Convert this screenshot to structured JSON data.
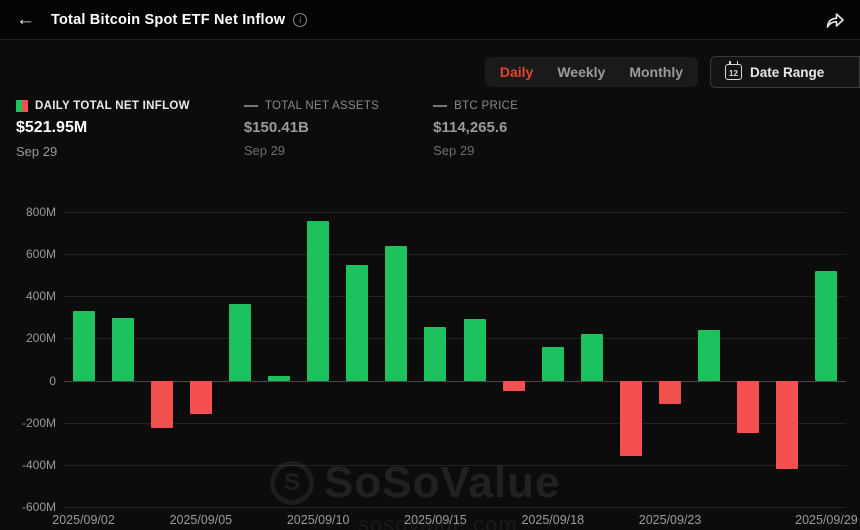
{
  "header": {
    "title": "Total Bitcoin Spot ETF Net Inflow"
  },
  "controls": {
    "tabs": [
      {
        "label": "Daily",
        "active": true
      },
      {
        "label": "Weekly",
        "active": false
      },
      {
        "label": "Monthly",
        "active": false
      }
    ],
    "date_range_label": "Date Range",
    "calendar_icon_text": "12"
  },
  "legend": {
    "items": [
      {
        "label": "DAILY TOTAL NET INFLOW",
        "value": "$521.95M",
        "date": "Sep 29"
      },
      {
        "label": "TOTAL NET ASSETS",
        "value": "$150.41B",
        "date": "Sep 29"
      },
      {
        "label": "BTC PRICE",
        "value": "$114,265.6",
        "date": "Sep 29"
      }
    ]
  },
  "watermark": {
    "logo_letter": "S",
    "title": "SoSoValue",
    "subtitle": "sosovalue.com"
  },
  "chart_data": {
    "type": "bar",
    "title": "Total Bitcoin Spot ETF Net Inflow (Daily, $M)",
    "categories": [
      "2025/09/02",
      "2025/09/03",
      "2025/09/04",
      "2025/09/05",
      "2025/09/08",
      "2025/09/09",
      "2025/09/10",
      "2025/09/11",
      "2025/09/12",
      "2025/09/15",
      "2025/09/16",
      "2025/09/17",
      "2025/09/18",
      "2025/09/19",
      "2025/09/22",
      "2025/09/23",
      "2025/09/24",
      "2025/09/25",
      "2025/09/26",
      "2025/09/29"
    ],
    "values": [
      330,
      295,
      -225,
      -160,
      365,
      20,
      755,
      550,
      640,
      255,
      290,
      -50,
      160,
      220,
      -360,
      -110,
      240,
      -250,
      -420,
      522
    ],
    "unit": "M",
    "ylim": [
      -600,
      800
    ],
    "y_tick_values": [
      800,
      600,
      400,
      200,
      0,
      -200,
      -400,
      -600
    ],
    "y_tick_labels": [
      "800M",
      "600M",
      "400M",
      "200M",
      "0",
      "-200M",
      "-400M",
      "-600M"
    ],
    "x_tick_indices": [
      0,
      3,
      6,
      9,
      12,
      15,
      19
    ],
    "x_tick_labels": [
      "2025/09/02",
      "2025/09/05",
      "2025/09/10",
      "2025/09/15",
      "2025/09/18",
      "2025/09/23",
      "2025/09/29"
    ],
    "grid": true,
    "colors": {
      "positive": "#1dc25e",
      "negative": "#f4504f",
      "accent_tab": "#e5442e"
    }
  }
}
